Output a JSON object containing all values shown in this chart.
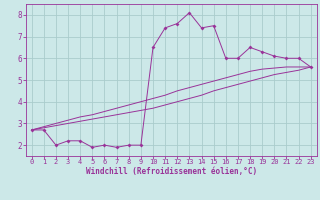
{
  "xlabel": "Windchill (Refroidissement éolien,°C)",
  "background_color": "#cce8e8",
  "line_color": "#993399",
  "grid_color": "#aacccc",
  "x_data": [
    0,
    1,
    2,
    3,
    4,
    5,
    6,
    7,
    8,
    9,
    10,
    11,
    12,
    13,
    14,
    15,
    16,
    17,
    18,
    19,
    20,
    21,
    22,
    23
  ],
  "y_main": [
    2.7,
    2.7,
    2.0,
    2.2,
    2.2,
    1.9,
    2.0,
    1.9,
    2.0,
    2.0,
    6.5,
    7.4,
    7.6,
    8.1,
    7.4,
    7.5,
    6.0,
    6.0,
    6.5,
    6.3,
    6.1,
    6.0,
    6.0,
    5.6
  ],
  "y_line1": [
    2.7,
    2.8,
    2.9,
    3.0,
    3.1,
    3.2,
    3.3,
    3.4,
    3.5,
    3.6,
    3.7,
    3.85,
    4.0,
    4.15,
    4.3,
    4.5,
    4.65,
    4.8,
    4.95,
    5.1,
    5.25,
    5.35,
    5.45,
    5.6
  ],
  "y_line2": [
    2.7,
    2.85,
    3.0,
    3.15,
    3.3,
    3.4,
    3.55,
    3.7,
    3.85,
    4.0,
    4.15,
    4.3,
    4.5,
    4.65,
    4.8,
    4.95,
    5.1,
    5.25,
    5.4,
    5.5,
    5.55,
    5.6,
    5.6,
    5.6
  ],
  "xlim": [
    -0.5,
    23.5
  ],
  "ylim": [
    1.5,
    8.5
  ],
  "yticks": [
    2,
    3,
    4,
    5,
    6,
    7,
    8
  ],
  "xticks": [
    0,
    1,
    2,
    3,
    4,
    5,
    6,
    7,
    8,
    9,
    10,
    11,
    12,
    13,
    14,
    15,
    16,
    17,
    18,
    19,
    20,
    21,
    22,
    23
  ],
  "tick_fontsize": 5.0,
  "xlabel_fontsize": 5.5
}
